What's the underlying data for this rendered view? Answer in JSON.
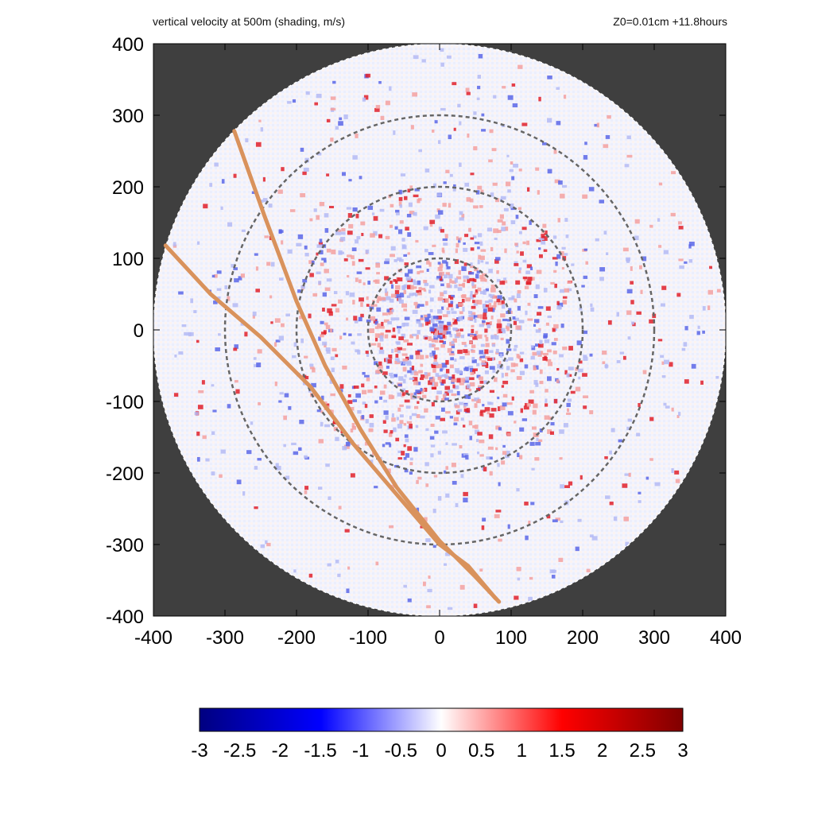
{
  "header": {
    "left": "vertical velocity at 500m (shading, m/s)",
    "right": "Z0=0.01cm  +11.8hours"
  },
  "chart_data": {
    "type": "heatmap",
    "title": "vertical velocity at 500m (shading, m/s)",
    "subtitle": "Z0=0.01cm  +11.8hours",
    "xlim": [
      -400,
      400
    ],
    "ylim": [
      -400,
      400
    ],
    "x_ticks": [
      "-400",
      "-300",
      "-200",
      "-100",
      "0",
      "100",
      "200",
      "300",
      "400"
    ],
    "y_ticks": [
      "400",
      "300",
      "200",
      "100",
      "0",
      "-100",
      "-200",
      "-300",
      "-400"
    ],
    "domain_radius": 400,
    "range_rings": [
      100,
      200,
      300
    ],
    "colorbar": {
      "min": -3,
      "max": 3,
      "ticks": [
        "-3",
        "-2.5",
        "-2",
        "-1.5",
        "-1",
        "-0.5",
        "0",
        "0.5",
        "1",
        "1.5",
        "2",
        "2.5",
        "3"
      ],
      "colors": [
        "#000080",
        "#0000ff",
        "#ffffff",
        "#ff0000",
        "#800000"
      ]
    },
    "tracks": [
      {
        "points": [
          [
            -287,
            278
          ],
          [
            -245,
            160
          ],
          [
            -200,
            40
          ],
          [
            -160,
            -50
          ],
          [
            -110,
            -140
          ],
          [
            -60,
            -220
          ],
          [
            0,
            -295
          ],
          [
            50,
            -345
          ],
          [
            83,
            -380
          ]
        ]
      },
      {
        "points": [
          [
            -383,
            118
          ],
          [
            -320,
            50
          ],
          [
            -250,
            -10
          ],
          [
            -180,
            -80
          ],
          [
            -120,
            -160
          ],
          [
            -60,
            -230
          ],
          [
            0,
            -300
          ],
          [
            40,
            -330
          ],
          [
            78,
            -375
          ]
        ]
      }
    ],
    "colors": {
      "background": "#3f3f3f",
      "track": "#d9925c",
      "ring": "#666666"
    }
  }
}
